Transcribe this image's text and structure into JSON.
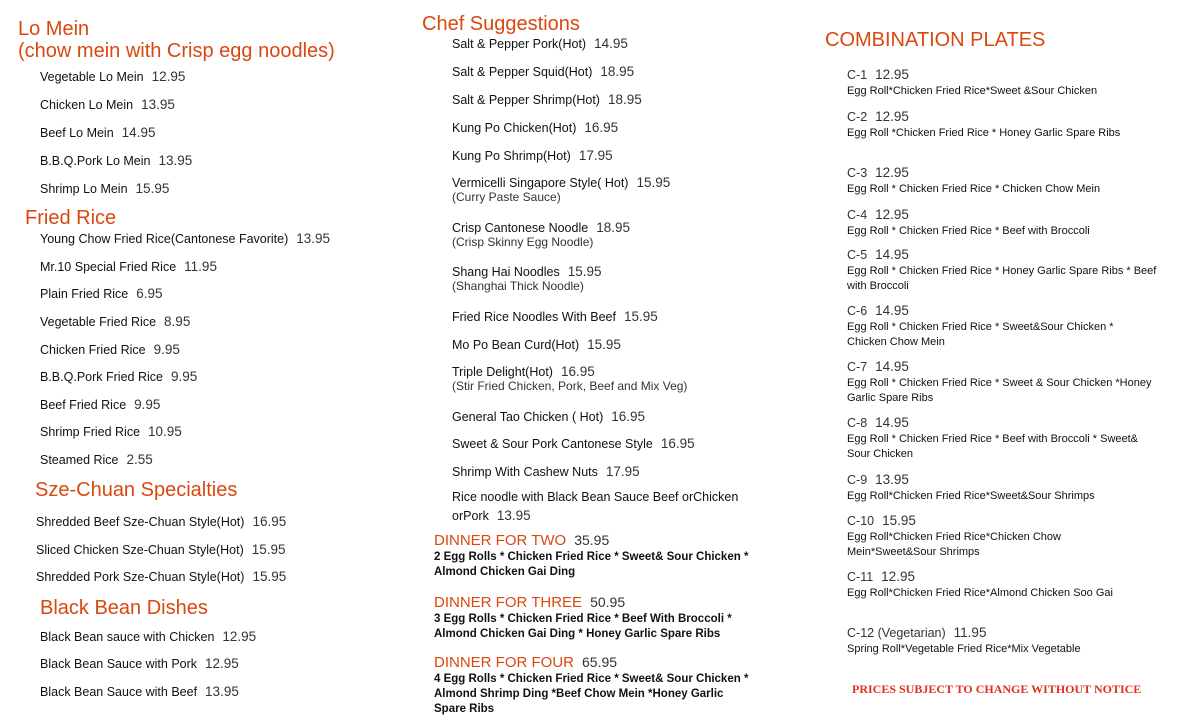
{
  "colors": {
    "heading": "#d9480f",
    "notice": "#e0301e",
    "text": "#111111"
  },
  "col1": [
    {
      "heading": "Lo Mein",
      "heading2": "(chow mein with Crisp egg noodles)",
      "items": [
        {
          "name": "Vegetable Lo Mein",
          "price": "12.95"
        },
        {
          "name": "Chicken Lo Mein",
          "price": "13.95"
        },
        {
          "name": "Beef Lo Mein",
          "price": "14.95"
        },
        {
          "name": "B.B.Q.Pork Lo Mein",
          "price": "13.95"
        },
        {
          "name": "Shrimp Lo Mein",
          "price": "15.95"
        }
      ]
    },
    {
      "heading": "Fried Rice",
      "items": [
        {
          "name": "Young Chow Fried Rice(Cantonese Favorite)",
          "price": "13.95"
        },
        {
          "name": "Mr.10 Special Fried Rice",
          "price": "11.95"
        },
        {
          "name": "Plain Fried Rice",
          "price": "6.95"
        },
        {
          "name": "Vegetable Fried Rice",
          "price": "8.95"
        },
        {
          "name": "Chicken Fried Rice",
          "price": "9.95"
        },
        {
          "name": "B.B.Q.Pork Fried Rice",
          "price": "9.95"
        },
        {
          "name": "Beef Fried Rice",
          "price": "9.95"
        },
        {
          "name": "Shrimp Fried Rice",
          "price": "10.95"
        },
        {
          "name": "Steamed Rice",
          "price": "2.55"
        }
      ]
    },
    {
      "heading": "Sze-Chuan Specialties",
      "items": [
        {
          "name": "Shredded Beef Sze-Chuan Style(Hot)",
          "price": "16.95"
        },
        {
          "name": "Sliced Chicken Sze-Chuan Style(Hot)",
          "price": "15.95"
        },
        {
          "name": "Shredded Pork Sze-Chuan Style(Hot)",
          "price": "15.95"
        }
      ]
    },
    {
      "heading": "Black Bean Dishes",
      "items": [
        {
          "name": "Black Bean sauce with Chicken",
          "price": "12.95"
        },
        {
          "name": "Black Bean Sauce with Pork",
          "price": "12.95"
        },
        {
          "name": "Black Bean Sauce with Beef",
          "price": "13.95"
        }
      ]
    }
  ],
  "chef": {
    "heading": "Chef Suggestions",
    "items": [
      {
        "name": "Salt & Pepper Pork(Hot)",
        "price": "14.95"
      },
      {
        "name": "Salt & Pepper Squid(Hot)",
        "price": "18.95"
      },
      {
        "name": "Salt & Pepper Shrimp(Hot)",
        "price": "18.95"
      },
      {
        "name": "Kung Po Chicken(Hot)",
        "price": "16.95"
      },
      {
        "name": "Kung Po Shrimp(Hot)",
        "price": "17.95"
      },
      {
        "name": "Vermicelli Singapore Style( Hot)",
        "price": "15.95",
        "sub": "(Curry Paste Sauce)"
      },
      {
        "name": "Crisp Cantonese Noodle",
        "price": "18.95",
        "sub": "(Crisp Skinny Egg Noodle)"
      },
      {
        "name": "Shang Hai Noodles",
        "price": "15.95",
        "sub": "(Shanghai Thick Noodle)"
      },
      {
        "name": "Fried Rice Noodles With Beef",
        "price": "15.95"
      },
      {
        "name": "Mo Po Bean Curd(Hot)",
        "price": "15.95"
      },
      {
        "name": "Triple Delight(Hot)",
        "price": "16.95",
        "sub": "(Stir Fried Chicken, Pork, Beef and Mix Veg)"
      },
      {
        "name": "General Tao Chicken ( Hot)",
        "price": "16.95"
      },
      {
        "name": "Sweet & Sour Pork Cantonese Style",
        "price": "16.95"
      },
      {
        "name": "Shrimp With Cashew Nuts",
        "price": "17.95"
      },
      {
        "name": "Rice noodle with Black Bean Sauce Beef orChicken",
        "name2": "orPork",
        "price": "13.95"
      }
    ]
  },
  "dinners": [
    {
      "title": "DINNER FOR TWO",
      "price": "35.95",
      "lines": [
        "2 Egg Rolls * Chicken Fried Rice * Sweet& Sour Chicken *",
        "Almond Chicken Gai Ding"
      ]
    },
    {
      "title": "DINNER FOR THREE",
      "price": "50.95",
      "lines": [
        "3 Egg Rolls * Chicken Fried Rice * Beef With Broccoli *",
        "Almond Chicken Gai Ding * Honey Garlic Spare Ribs"
      ]
    },
    {
      "title": "DINNER FOR FOUR",
      "price": "65.95",
      "lines": [
        "4 Egg Rolls * Chicken Fried Rice * Sweet& Sour Chicken *",
        "Almond Shrimp Ding *Beef Chow Mein *Honey Garlic",
        "Spare Ribs"
      ]
    }
  ],
  "combo": {
    "heading": "COMBINATION PLATES",
    "items": [
      {
        "code": "C-1",
        "price": "12.95",
        "lines": [
          "Egg Roll*Chicken Fried Rice*Sweet &Sour Chicken"
        ]
      },
      {
        "code": "C-2",
        "price": "12.95",
        "lines": [
          "Egg Roll *Chicken Fried Rice * Honey Garlic Spare Ribs"
        ]
      },
      {
        "code": "C-3",
        "price": "12.95",
        "lines": [
          "Egg Roll * Chicken Fried Rice * Chicken Chow Mein"
        ]
      },
      {
        "code": "C-4",
        "price": "12.95",
        "lines": [
          "Egg Roll * Chicken Fried Rice * Beef with Broccoli"
        ]
      },
      {
        "code": "C-5",
        "price": "14.95",
        "lines": [
          "Egg Roll * Chicken Fried Rice * Honey Garlic Spare Ribs * Beef",
          "with Broccoli"
        ]
      },
      {
        "code": "C-6",
        "price": "14.95",
        "lines": [
          "Egg Roll * Chicken Fried Rice * Sweet&Sour Chicken *",
          "Chicken Chow Mein"
        ]
      },
      {
        "code": "C-7",
        "price": "14.95",
        "lines": [
          "Egg Roll * Chicken Fried Rice * Sweet & Sour Chicken *Honey",
          "Garlic Spare Ribs"
        ]
      },
      {
        "code": "C-8",
        "price": "14.95",
        "lines": [
          "Egg Roll * Chicken Fried Rice * Beef with Broccoli * Sweet&",
          "Sour Chicken"
        ]
      },
      {
        "code": "C-9",
        "price": "13.95",
        "lines": [
          "Egg Roll*Chicken Fried Rice*Sweet&Sour Shrimps"
        ]
      },
      {
        "code": "C-10",
        "price": "15.95",
        "lines": [
          "Egg Roll*Chicken Fried Rice*Chicken Chow",
          "Mein*Sweet&Sour Shrimps"
        ]
      },
      {
        "code": "C-11",
        "price": "12.95",
        "lines": [
          "Egg Roll*Chicken Fried Rice*Almond Chicken Soo Gai"
        ]
      },
      {
        "code": "C-12 (Vegetarian)",
        "price": "11.95",
        "lines": [
          "Spring Roll*Vegetable Fried Rice*Mix Vegetable"
        ]
      }
    ]
  },
  "notice": "PRICES SUBJECT TO CHANGE WITHOUT NOTICE"
}
